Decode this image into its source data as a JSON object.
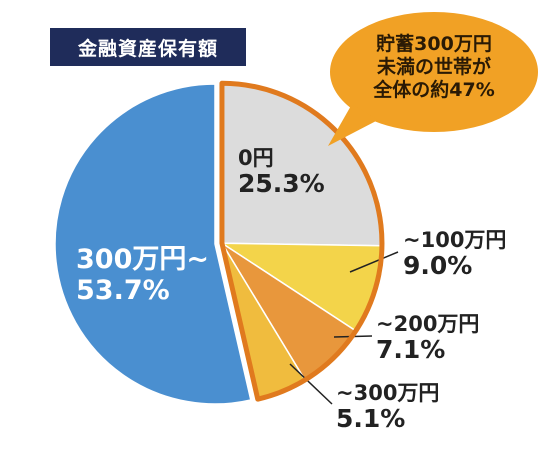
{
  "chart_data": {
    "type": "pie",
    "title": "金融資産保有額",
    "slices": [
      {
        "label": "0円",
        "value": 25.3,
        "display": "25.3%",
        "color": "#dcdcdc"
      },
      {
        "label": "~100万円",
        "value": 9.0,
        "display": "9.0%",
        "color": "#f3d44a"
      },
      {
        "label": "~200万円",
        "value": 7.1,
        "display": "7.1%",
        "color": "#e8973c"
      },
      {
        "label": "~300万円",
        "value": 5.1,
        "display": "5.1%",
        "color": "#f0bc3e"
      },
      {
        "label": "300万円~",
        "value": 53.7,
        "display": "53.7%",
        "color": "#4a8fd0"
      }
    ],
    "highlight": {
      "color": "#e07a1e",
      "callout_lines": [
        "貯蓄300万円",
        "未満の世帯が",
        "全体の約47%"
      ],
      "callout_color": "#f1a125"
    }
  }
}
